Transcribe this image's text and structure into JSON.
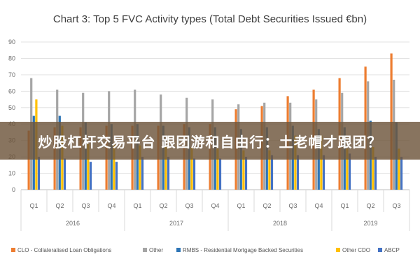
{
  "chart_data": {
    "type": "bar",
    "title": "Chart 3: Top 5 FVC Activity types (Total Debt Securities Issued €bn)",
    "xlabel": "",
    "ylabel": "",
    "ylim": [
      0,
      90
    ],
    "yticks": [
      0,
      10,
      20,
      30,
      40,
      50,
      60,
      70,
      80,
      90
    ],
    "grid": true,
    "legend_position": "bottom",
    "categories": [
      "Q1",
      "Q2",
      "Q3",
      "Q4",
      "Q1",
      "Q2",
      "Q3",
      "Q4",
      "Q1",
      "Q2",
      "Q3",
      "Q4",
      "Q1",
      "Q2",
      "Q3"
    ],
    "year_groups": [
      {
        "label": "2016",
        "start": 0,
        "count": 4
      },
      {
        "label": "2017",
        "start": 4,
        "count": 4
      },
      {
        "label": "2018",
        "start": 8,
        "count": 4
      },
      {
        "label": "2019",
        "start": 12,
        "count": 3
      }
    ],
    "series": [
      {
        "name": "CLO - Collateralised Loan Obligations",
        "color": "#ed7d31",
        "values": [
          36,
          38,
          38,
          39,
          39,
          39,
          40,
          40,
          49,
          51,
          57,
          61,
          68,
          75,
          83
        ]
      },
      {
        "name": "Other",
        "color": "#a5a5a5",
        "values": [
          68,
          61,
          59,
          60,
          61,
          58,
          56,
          55,
          52,
          53,
          53,
          55,
          59,
          66,
          67
        ]
      },
      {
        "name": "RMBS - Residential Mortgage Backed Securities",
        "color": "#2e75b6",
        "values": [
          45,
          45,
          41,
          40,
          40,
          39,
          38,
          38,
          37,
          38,
          39,
          37,
          38,
          42,
          41
        ]
      },
      {
        "name": "Other CDO",
        "color": "#ffc000",
        "values": [
          55,
          39,
          28,
          28,
          27,
          26,
          26,
          25,
          24,
          24,
          33,
          33,
          25,
          26,
          25
        ]
      },
      {
        "name": "ABCP",
        "color": "#4472c4",
        "values": [
          20,
          19,
          17,
          17,
          20,
          20,
          19,
          19,
          20,
          21,
          21,
          21,
          22,
          20,
          20
        ]
      }
    ]
  },
  "overlay": {
    "text": "炒股杠杆交易平台 跟团游和自由行：土老帽才跟团？"
  }
}
